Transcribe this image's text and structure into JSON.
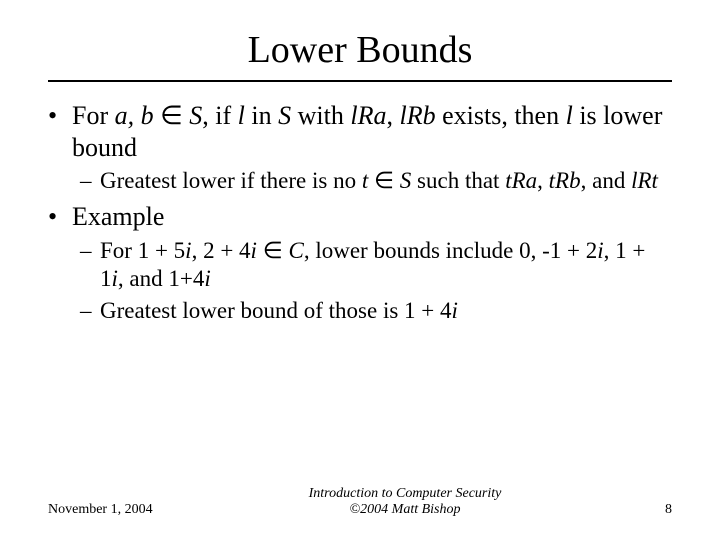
{
  "title": "Lower Bounds",
  "bullets": {
    "b1_pre": "For ",
    "b1_ab": "a, b",
    "b1_in": " ∈ ",
    "b1_S1": "S",
    "b1_if": ", if ",
    "b1_l1": "l",
    "b1_inword": " in ",
    "b1_S2": "S",
    "b1_with": " with ",
    "b1_lRa": "lRa",
    "b1_comma": ", ",
    "b1_lRb": "lRb",
    "b1_exists": " exists, then ",
    "b1_l2": "l",
    "b1_tail": " is lower bound",
    "b1a_pre": "Greatest lower if there is no ",
    "b1a_t": "t",
    "b1a_in": " ∈ ",
    "b1a_S": "S",
    "b1a_mid": " such that ",
    "b1a_tRa": "tRa",
    "b1a_c1": ", ",
    "b1a_tRb": "tRb",
    "b1a_and": ", and ",
    "b1a_lRt": "lRt",
    "b2": "Example",
    "b2a_pre": "For 1 + 5",
    "b2a_i1": "i",
    "b2a_m1": ", 2 + 4",
    "b2a_i2": "i",
    "b2a_in": " ∈ ",
    "b2a_C": "C",
    "b2a_m2": ", lower bounds include 0, -1 + 2",
    "b2a_i3": "i",
    "b2a_m3": ", 1 + 1",
    "b2a_i4": "i",
    "b2a_m4": ", and 1+4",
    "b2a_i5": "i",
    "b2b_pre": "Greatest lower bound of those is 1 + 4",
    "b2b_i": "i"
  },
  "footer": {
    "date": "November 1, 2004",
    "course": "Introduction to Computer Security",
    "copyright": "©2004 Matt Bishop",
    "page": "8"
  },
  "style": {
    "title_fontsize": 38,
    "body_fontsize": 26,
    "sub_fontsize": 23,
    "footer_fontsize": 14,
    "text_color": "#000000",
    "background_color": "#ffffff",
    "rule_color": "#000000",
    "rule_width": 2
  }
}
